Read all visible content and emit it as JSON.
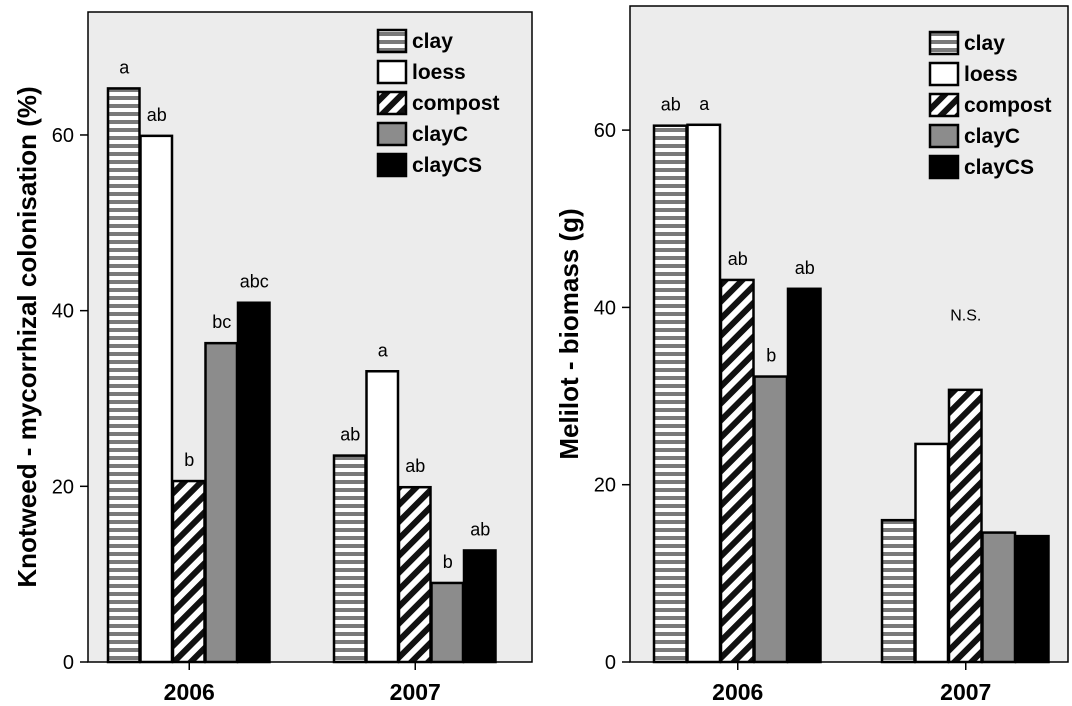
{
  "chart_data": [
    {
      "type": "bar",
      "ylabel": "Knotweed - mycorrhizal colonisation (%)",
      "xlabel": "",
      "categories": [
        "2006",
        "2007"
      ],
      "ylim": [
        0,
        74
      ],
      "yticks": [
        "0",
        "20",
        "40",
        "60"
      ],
      "legend_position": "top-right",
      "series": [
        {
          "name": "clay",
          "pattern": "hstripe",
          "values": [
            65.3,
            23.5
          ],
          "labels": [
            "a",
            "ab"
          ]
        },
        {
          "name": "loess",
          "pattern": "white",
          "values": [
            59.9,
            33.1
          ],
          "labels": [
            "ab",
            "a"
          ]
        },
        {
          "name": "compost",
          "pattern": "diag",
          "values": [
            20.6,
            19.9
          ],
          "labels": [
            "b",
            "ab"
          ]
        },
        {
          "name": "clayC",
          "pattern": "gray",
          "values": [
            36.3,
            9.0
          ],
          "labels": [
            "bc",
            "b"
          ]
        },
        {
          "name": "clayCS",
          "pattern": "black",
          "values": [
            40.9,
            12.7
          ],
          "labels": [
            "abc",
            "ab"
          ]
        }
      ]
    },
    {
      "type": "bar",
      "ylabel": "Melilot -  biomass (g)",
      "xlabel": "",
      "categories": [
        "2006",
        "2007"
      ],
      "ylim": [
        0,
        74
      ],
      "yticks": [
        "0",
        "20",
        "40",
        "60"
      ],
      "legend_position": "top-right",
      "annotations": [
        {
          "text": "N.S.",
          "category": "2007",
          "y": 38.5
        }
      ],
      "series": [
        {
          "name": "clay",
          "pattern": "hstripe",
          "values": [
            60.5,
            16.0
          ],
          "labels": [
            "ab",
            ""
          ]
        },
        {
          "name": "loess",
          "pattern": "white",
          "values": [
            60.6,
            24.6
          ],
          "labels": [
            "a",
            ""
          ]
        },
        {
          "name": "compost",
          "pattern": "diag",
          "values": [
            43.1,
            30.7
          ],
          "labels": [
            "ab",
            ""
          ]
        },
        {
          "name": "clayC",
          "pattern": "gray",
          "values": [
            32.2,
            14.6
          ],
          "labels": [
            "b",
            ""
          ]
        },
        {
          "name": "clayCS",
          "pattern": "black",
          "values": [
            42.1,
            14.2
          ],
          "labels": [
            "ab",
            ""
          ]
        }
      ]
    }
  ],
  "colors": {
    "plot_background": "#ececec",
    "gray_bar": "#8c8c8c",
    "black_bar": "#000000",
    "stripe": "#777777"
  }
}
